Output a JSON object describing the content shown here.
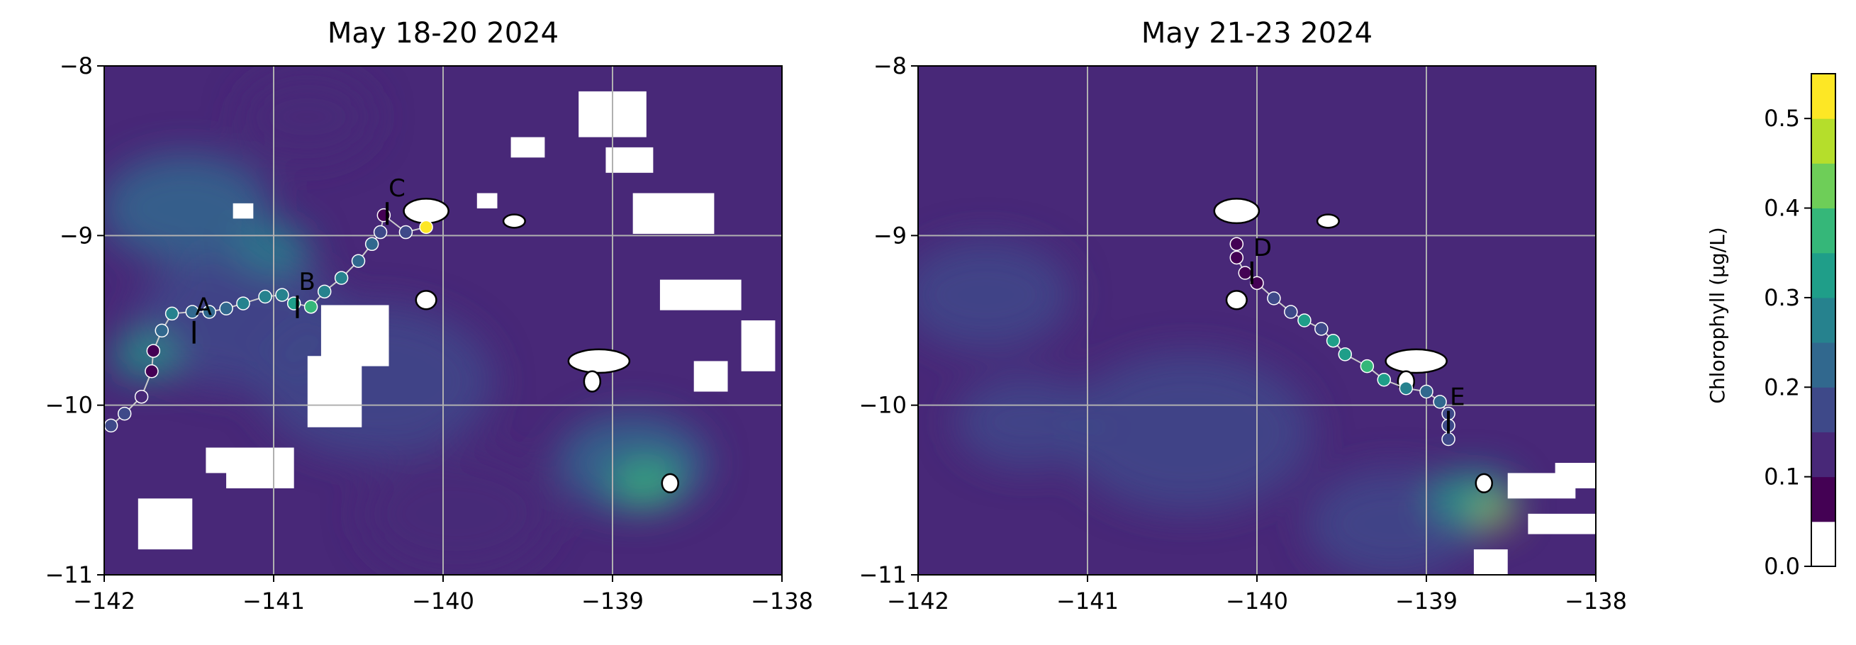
{
  "chart_data": [
    {
      "type": "contour-map",
      "title": "May 18-20 2024",
      "xlim": [
        -142,
        -138
      ],
      "ylim": [
        -11,
        -8
      ],
      "x_ticks": [
        -142,
        -141,
        -140,
        -139,
        -138
      ],
      "y_ticks": [
        -8,
        -9,
        -10,
        -11
      ],
      "grid": true,
      "stations": [
        {
          "label": "A",
          "lon": -141.47,
          "lat": -9.62
        },
        {
          "label": "B",
          "lon": -140.86,
          "lat": -9.47
        },
        {
          "label": "C",
          "lon": -140.33,
          "lat": -8.92
        }
      ],
      "track": [
        {
          "lon": -141.96,
          "lat": -10.12,
          "chl": 0.13
        },
        {
          "lon": -141.88,
          "lat": -10.05,
          "chl": 0.15
        },
        {
          "lon": -141.78,
          "lat": -9.95,
          "chl": 0.06
        },
        {
          "lon": -141.72,
          "lat": -9.8,
          "chl": 0.05
        },
        {
          "lon": -141.71,
          "lat": -9.68,
          "chl": 0.05
        },
        {
          "lon": -141.66,
          "lat": -9.56,
          "chl": 0.22
        },
        {
          "lon": -141.6,
          "lat": -9.46,
          "chl": 0.25
        },
        {
          "lon": -141.48,
          "lat": -9.45,
          "chl": 0.2
        },
        {
          "lon": -141.38,
          "lat": -9.45,
          "chl": 0.22
        },
        {
          "lon": -141.28,
          "lat": -9.43,
          "chl": 0.22
        },
        {
          "lon": -141.18,
          "lat": -9.4,
          "chl": 0.23
        },
        {
          "lon": -141.05,
          "lat": -9.36,
          "chl": 0.23
        },
        {
          "lon": -140.95,
          "lat": -9.35,
          "chl": 0.24
        },
        {
          "lon": -140.88,
          "lat": -9.4,
          "chl": 0.28
        },
        {
          "lon": -140.78,
          "lat": -9.42,
          "chl": 0.33
        },
        {
          "lon": -140.7,
          "lat": -9.33,
          "chl": 0.26
        },
        {
          "lon": -140.6,
          "lat": -9.25,
          "chl": 0.23
        },
        {
          "lon": -140.5,
          "lat": -9.15,
          "chl": 0.2
        },
        {
          "lon": -140.42,
          "lat": -9.05,
          "chl": 0.18
        },
        {
          "lon": -140.37,
          "lat": -8.98,
          "chl": 0.16
        },
        {
          "lon": -140.35,
          "lat": -8.88,
          "chl": 0.02
        },
        {
          "lon": -140.22,
          "lat": -8.98,
          "chl": 0.15
        },
        {
          "lon": -140.1,
          "lat": -8.95,
          "chl": 0.5
        }
      ]
    },
    {
      "type": "contour-map",
      "title": "May 21-23 2024",
      "xlim": [
        -142,
        -138
      ],
      "ylim": [
        -11,
        -8
      ],
      "x_ticks": [
        -142,
        -141,
        -140,
        -139,
        -138
      ],
      "y_ticks": [
        -8,
        -9,
        -10,
        -11
      ],
      "grid": true,
      "stations": [
        {
          "label": "D",
          "lon": -140.03,
          "lat": -9.27
        },
        {
          "label": "E",
          "lon": -138.87,
          "lat": -10.15
        }
      ],
      "track": [
        {
          "lon": -140.12,
          "lat": -9.05,
          "chl": 0.02
        },
        {
          "lon": -140.12,
          "lat": -9.13,
          "chl": 0.03
        },
        {
          "lon": -140.07,
          "lat": -9.22,
          "chl": 0.02
        },
        {
          "lon": -140.0,
          "lat": -9.28,
          "chl": 0.02
        },
        {
          "lon": -139.9,
          "lat": -9.37,
          "chl": 0.15
        },
        {
          "lon": -139.8,
          "lat": -9.45,
          "chl": 0.16
        },
        {
          "lon": -139.72,
          "lat": -9.5,
          "chl": 0.3
        },
        {
          "lon": -139.62,
          "lat": -9.55,
          "chl": 0.15
        },
        {
          "lon": -139.55,
          "lat": -9.62,
          "chl": 0.3
        },
        {
          "lon": -139.48,
          "lat": -9.7,
          "chl": 0.32
        },
        {
          "lon": -139.35,
          "lat": -9.77,
          "chl": 0.33
        },
        {
          "lon": -139.25,
          "lat": -9.85,
          "chl": 0.3
        },
        {
          "lon": -139.12,
          "lat": -9.9,
          "chl": 0.25
        },
        {
          "lon": -139.0,
          "lat": -9.92,
          "chl": 0.2
        },
        {
          "lon": -138.92,
          "lat": -9.98,
          "chl": 0.18
        },
        {
          "lon": -138.87,
          "lat": -10.05,
          "chl": 0.16
        },
        {
          "lon": -138.87,
          "lat": -10.12,
          "chl": 0.14
        },
        {
          "lon": -138.87,
          "lat": -10.2,
          "chl": 0.13
        }
      ]
    }
  ],
  "colorbar": {
    "label": "Chlorophyll (µg/L)",
    "vmin": 0.0,
    "vmax": 0.55,
    "levels": 11,
    "ticks": [
      "0.0",
      "0.1",
      "0.2",
      "0.3",
      "0.4",
      "0.5"
    ],
    "colormap": [
      "#440154",
      "#482878",
      "#3e4989",
      "#31688e",
      "#26828e",
      "#1f9e89",
      "#35b779",
      "#6ece58",
      "#b5de2b",
      "#fde725"
    ]
  },
  "islands": {
    "fill": "#ffffff",
    "outline": "#000000"
  },
  "cloud_mask_color": "#ffffff"
}
